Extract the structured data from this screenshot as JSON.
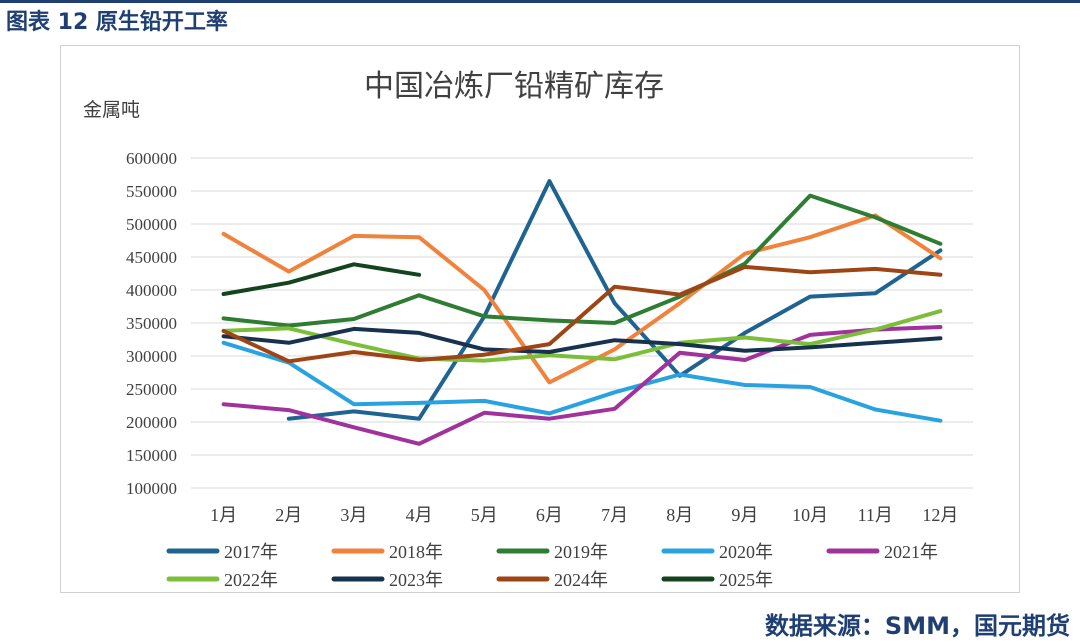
{
  "header": {
    "title": "图表 12 原生铅开工率"
  },
  "source": {
    "text": "数据来源：SMM，国元期货"
  },
  "colors": {
    "brand": "#1f3f73",
    "frame": "#d0d0d0",
    "grid": "#d9d9d9"
  },
  "chart_data": {
    "type": "line",
    "title": "中国冶炼厂铅精矿库存",
    "ylabel": "金属吨",
    "xlabel": "",
    "categories": [
      "1月",
      "2月",
      "3月",
      "4月",
      "5月",
      "6月",
      "7月",
      "8月",
      "9月",
      "10月",
      "11月",
      "12月"
    ],
    "ylim": [
      100000,
      600000
    ],
    "yticks": [
      600000,
      550000,
      500000,
      450000,
      400000,
      350000,
      300000,
      250000,
      200000,
      150000,
      100000
    ],
    "grid": true,
    "legend_position": "bottom",
    "series": [
      {
        "name": "2017年",
        "color": "#1f6391",
        "values": [
          null,
          205000,
          216000,
          205000,
          360000,
          565000,
          380000,
          270000,
          335000,
          390000,
          395000,
          460000
        ]
      },
      {
        "name": "2018年",
        "color": "#f0823c",
        "values": [
          485000,
          428000,
          482000,
          480000,
          400000,
          260000,
          310000,
          380000,
          455000,
          480000,
          513000,
          448000
        ]
      },
      {
        "name": "2019年",
        "color": "#2e7d32",
        "values": [
          357000,
          346000,
          356000,
          392000,
          360000,
          354000,
          350000,
          390000,
          440000,
          543000,
          510000,
          470000
        ]
      },
      {
        "name": "2020年",
        "color": "#29a3e0",
        "values": [
          320000,
          290000,
          227000,
          229000,
          232000,
          213000,
          245000,
          272000,
          256000,
          253000,
          219000,
          202000
        ]
      },
      {
        "name": "2021年",
        "color": "#a0329b",
        "values": [
          227000,
          218000,
          192000,
          167000,
          214000,
          205000,
          220000,
          305000,
          294000,
          332000,
          340000,
          344000
        ]
      },
      {
        "name": "2022年",
        "color": "#7cbd3a",
        "values": [
          338000,
          342000,
          318000,
          296000,
          293000,
          301000,
          295000,
          320000,
          328000,
          318000,
          340000,
          368000
        ]
      },
      {
        "name": "2023年",
        "color": "#17324f",
        "values": [
          330000,
          320000,
          341000,
          335000,
          310000,
          306000,
          324000,
          318000,
          308000,
          313000,
          320000,
          327000
        ]
      },
      {
        "name": "2024年",
        "color": "#9e4516",
        "values": [
          338000,
          292000,
          306000,
          294000,
          302000,
          318000,
          405000,
          393000,
          435000,
          427000,
          432000,
          423000
        ]
      },
      {
        "name": "2025年",
        "color": "#14431f",
        "values": [
          394000,
          411000,
          439000,
          423000,
          null,
          null,
          null,
          null,
          null,
          null,
          null,
          null
        ]
      }
    ]
  }
}
